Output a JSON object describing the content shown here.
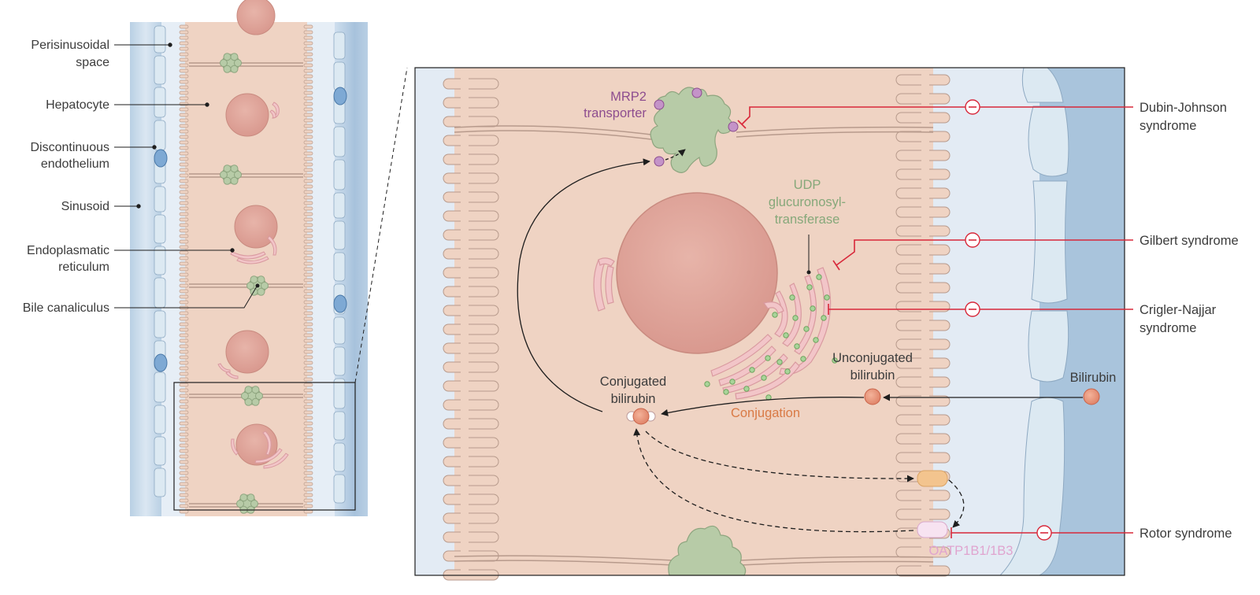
{
  "left_panel": {
    "labels": {
      "perisinusoidal_1": "Perisinusoidal",
      "perisinusoidal_2": "space",
      "hepatocyte": "Hepatocyte",
      "endothelium_1": "Discontinuous",
      "endothelium_2": "endothelium",
      "sinusoid": "Sinusoid",
      "er_1": "Endoplasmatic",
      "er_2": "reticulum",
      "bile_canaliculus": "Bile canaliculus"
    }
  },
  "zoom_panel": {
    "labels": {
      "mrp2_1": "MRP2",
      "mrp2_2": "transporter",
      "udp_1": "UDP",
      "udp_2": "glucuronosyl-",
      "udp_3": "transferase",
      "unconj_1": "Unconjugated",
      "unconj_2": "bilirubin",
      "bilirubin": "Bilirubin",
      "conj_1": "Conjugated",
      "conj_2": "bilirubin",
      "conjugation": "Conjugation",
      "oatp": "OATP1B1/1B3"
    }
  },
  "syndromes": {
    "dubin_1": "Dubin-Johnson",
    "dubin_2": "syndrome",
    "gilbert": "Gilbert syndrome",
    "crigler_1": "Crigler-Najjar",
    "crigler_2": "syndrome",
    "rotor": "Rotor syndrome",
    "inhibit_symbol": "−"
  },
  "colors": {
    "hepatocyte": "#efd3c3",
    "sinusoid_dark": "#a9c4dc",
    "space_light": "#e3ebf4",
    "endothelium": "#dce9f2",
    "canaliculus_green": "#b7cba7",
    "nucleus": "#dfa79d",
    "er_pink": "#f2c5c8",
    "mrp2_purple": "#c493c8",
    "bilirubin_orange": "#ea9a7a",
    "transporter_orange": "#f3c48e",
    "oatp_pink": "#f7e3f1",
    "inhibition_red": "#d8283a"
  }
}
